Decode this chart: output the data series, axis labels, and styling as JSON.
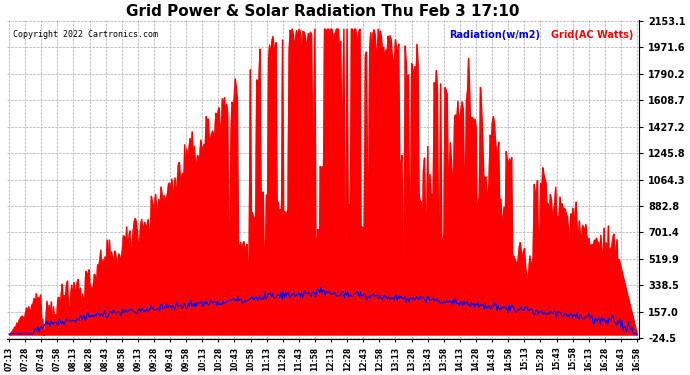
{
  "title": "Grid Power & Solar Radiation Thu Feb 3 17:10",
  "copyright": "Copyright 2022 Cartronics.com",
  "legend_radiation": "Radiation(w/m2)",
  "legend_grid": "Grid(AC Watts)",
  "ylabel_values": [
    2153.1,
    1971.6,
    1790.2,
    1608.7,
    1427.2,
    1245.8,
    1064.3,
    882.8,
    701.4,
    519.9,
    338.5,
    157.0,
    -24.5
  ],
  "ymin": -24.5,
  "ymax": 2153.1,
  "x_tick_labels": [
    "07:13",
    "07:28",
    "07:43",
    "07:58",
    "08:13",
    "08:28",
    "08:43",
    "08:58",
    "09:13",
    "09:28",
    "09:43",
    "09:58",
    "10:13",
    "10:28",
    "10:43",
    "10:58",
    "11:13",
    "11:28",
    "11:43",
    "11:58",
    "12:13",
    "12:28",
    "12:43",
    "12:58",
    "13:13",
    "13:28",
    "13:43",
    "13:58",
    "14:13",
    "14:28",
    "14:43",
    "14:58",
    "15:13",
    "15:28",
    "15:43",
    "15:58",
    "16:13",
    "16:28",
    "16:43",
    "16:58"
  ],
  "background_color": "#ffffff",
  "grid_color": "#aaaaaa",
  "fill_color": "#ff0000",
  "line_color": "#0000ff",
  "title_color": "#000000",
  "copyright_color": "#000000",
  "legend_radiation_color": "#0000ff",
  "legend_grid_color": "#ff0000"
}
